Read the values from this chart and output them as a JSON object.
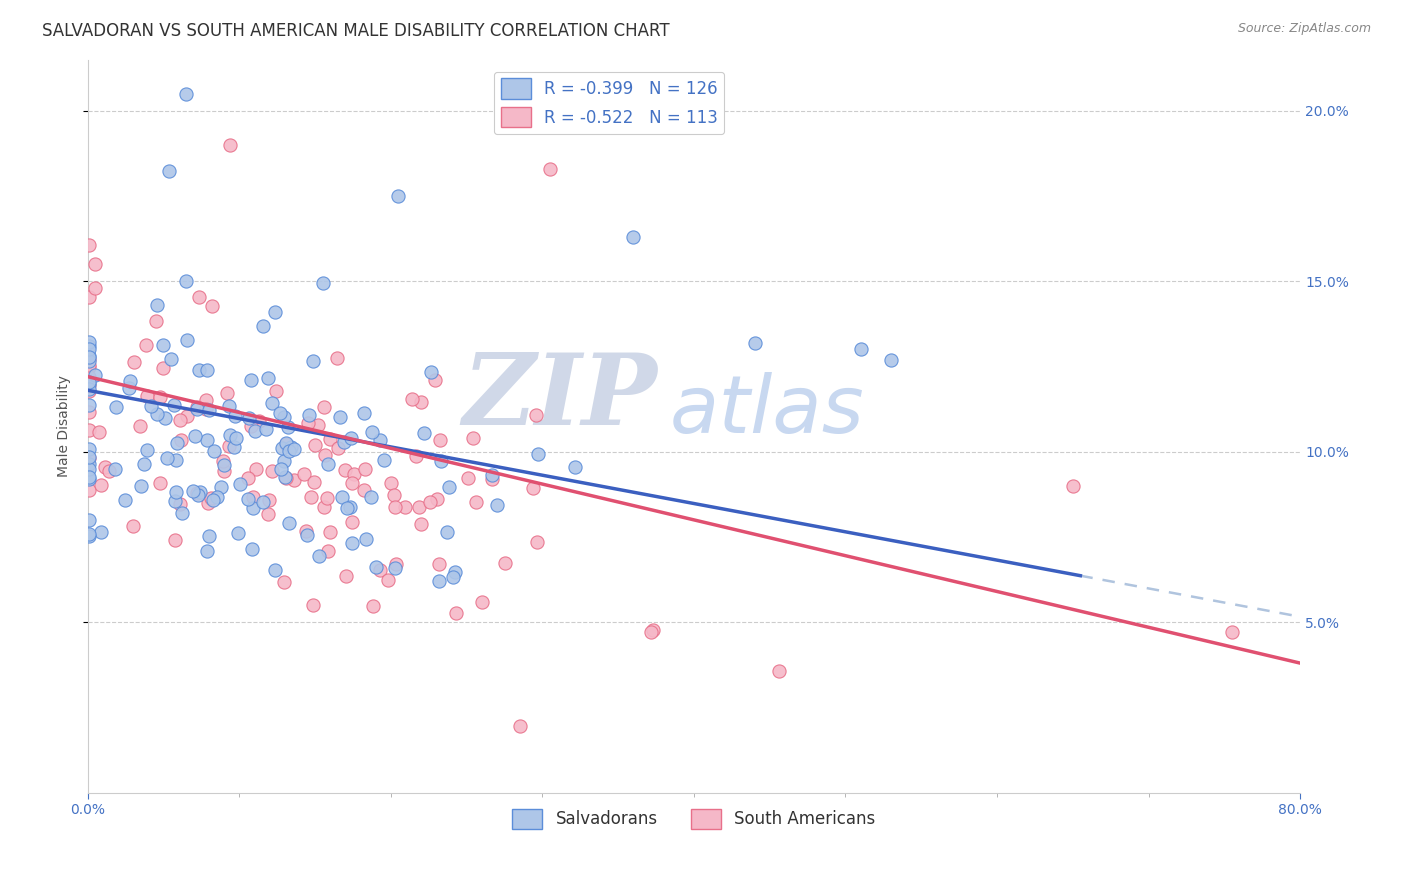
{
  "title": "SALVADORAN VS SOUTH AMERICAN MALE DISABILITY CORRELATION CHART",
  "source": "Source: ZipAtlas.com",
  "ylabel": "Male Disability",
  "xlim": [
    0.0,
    0.8
  ],
  "ylim": [
    0.0,
    0.215
  ],
  "yticks": [
    0.05,
    0.1,
    0.15,
    0.2
  ],
  "ytick_labels": [
    "5.0%",
    "10.0%",
    "15.0%",
    "20.0%"
  ],
  "salvadoran_fill": "#aec6e8",
  "salvadoran_edge": "#5b8dd9",
  "south_american_fill": "#f5b8c8",
  "south_american_edge": "#e8708a",
  "sal_line_color": "#3b5fc0",
  "sa_line_color": "#e05070",
  "dash_color": "#b0c4de",
  "background_color": "#ffffff",
  "watermark_zip": "ZIP",
  "watermark_atlas": "atlas",
  "watermark_zip_color": "#d0d8e8",
  "watermark_atlas_color": "#c8d8f0",
  "r_salvadoran": -0.399,
  "r_south_american": -0.522,
  "n_salvadoran": 126,
  "n_south_american": 113,
  "title_fontsize": 12,
  "axis_label_fontsize": 10,
  "tick_fontsize": 10,
  "legend_fontsize": 12,
  "sal_line_intercept": 0.118,
  "sal_line_slope": -0.083,
  "sa_line_intercept": 0.122,
  "sa_line_slope": -0.105,
  "sal_line_end_x": 0.655,
  "sa_line_end_x": 0.8
}
